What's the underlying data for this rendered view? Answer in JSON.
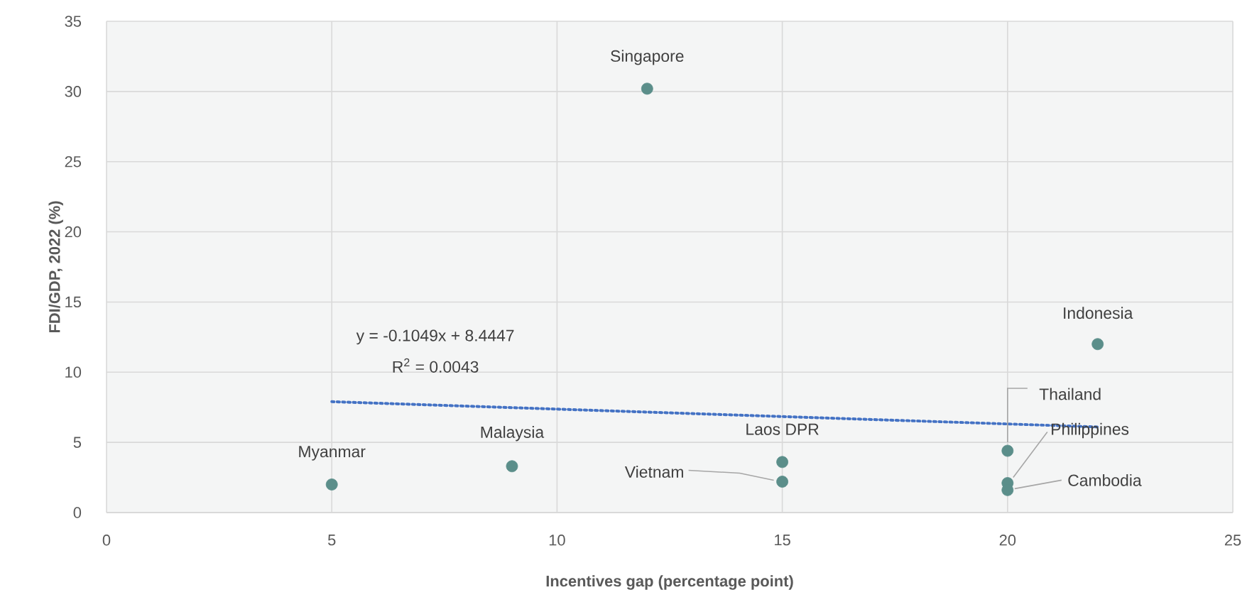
{
  "chart_data": {
    "type": "scatter",
    "xlabel": "Incentives gap (percentage point)",
    "ylabel": "FDI/GDP, 2022 (%)",
    "xlim": [
      0,
      25
    ],
    "xticks": [
      0,
      5,
      10,
      15,
      20,
      25
    ],
    "ylim": [
      0,
      35
    ],
    "yticks": [
      0,
      5,
      10,
      15,
      20,
      25,
      30,
      35
    ],
    "grid": true,
    "series": [
      {
        "color": "#5b8e8a",
        "marker": "circle",
        "x": [
          12,
          22,
          5,
          9,
          15,
          15,
          20,
          20,
          20
        ],
        "values": [
          30.2,
          12.0,
          2.0,
          3.3,
          3.6,
          2.2,
          4.4,
          2.1,
          1.6
        ]
      },
      {
        "type": "line",
        "color": "#4472c4",
        "line_style": "dotted",
        "marker": "none",
        "x": [
          5,
          22
        ],
        "values": [
          7.9,
          6.1
        ]
      }
    ],
    "annotations": [
      "y = -0.1049x + 8.4447",
      "R$^{2}$ = 0.0043",
      {
        "text": "Singapore",
        "x": 12,
        "y": 30.2
      },
      {
        "text": "Indonesia",
        "x": 22,
        "y": 12.0
      },
      {
        "text": "Myanmar",
        "x": 5,
        "y": 2.0
      },
      {
        "text": "Malaysia",
        "x": 9,
        "y": 3.3
      },
      {
        "text": "Laos DPR",
        "x": 15,
        "y": 3.6
      },
      {
        "text": "Vietnam",
        "x": 15,
        "y": 2.2
      },
      {
        "text": "Thailand",
        "x": 20,
        "y": 4.4
      },
      {
        "text": "Philippines",
        "x": 20,
        "y": 2.1
      },
      {
        "text": "Cambodia",
        "x": 20,
        "y": 1.6
      }
    ]
  }
}
